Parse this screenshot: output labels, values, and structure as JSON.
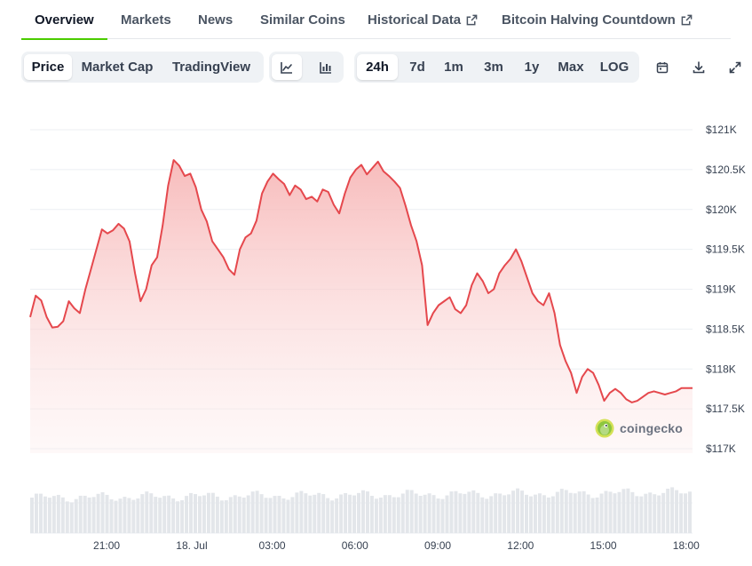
{
  "tabs": [
    {
      "label": "Overview",
      "active": true,
      "external": false
    },
    {
      "label": "Markets",
      "active": false,
      "external": false
    },
    {
      "label": "News",
      "active": false,
      "external": false
    },
    {
      "label": "Similar Coins",
      "active": false,
      "external": false
    },
    {
      "label": "Historical Data",
      "active": false,
      "external": true
    },
    {
      "label": "Bitcoin Halving Countdown",
      "active": false,
      "external": true
    }
  ],
  "toolbar": {
    "metric_tabs": [
      {
        "label": "Price",
        "active": true
      },
      {
        "label": "Market Cap",
        "active": false
      },
      {
        "label": "TradingView",
        "active": false
      }
    ],
    "chart_type_icons": [
      {
        "name": "line-chart-icon",
        "active": true
      },
      {
        "name": "candlestick-chart-icon",
        "active": false
      }
    ],
    "ranges": [
      {
        "label": "24h",
        "active": true
      },
      {
        "label": "7d",
        "active": false
      },
      {
        "label": "1m",
        "active": false
      },
      {
        "label": "3m",
        "active": false
      },
      {
        "label": "1y",
        "active": false
      },
      {
        "label": "Max",
        "active": false
      },
      {
        "label": "LOG",
        "active": false
      }
    ],
    "action_icons": [
      "calendar-icon",
      "download-icon",
      "expand-icon"
    ]
  },
  "watermark": {
    "text": "coingecko",
    "icon": "coingecko-gecko-icon"
  },
  "colors": {
    "line": "#e5484d",
    "fill_top": "#f7b8b8",
    "active_tab_underline": "#4bcc00",
    "volume_bar": "#e3e6ea",
    "gecko_green": "#8dc63f"
  },
  "chart_data": {
    "type": "area",
    "title": "",
    "xlabel": "",
    "ylabel": "",
    "ylim": [
      116750,
      121250
    ],
    "yticks": [
      {
        "value": 121000,
        "label": "$121K"
      },
      {
        "value": 120500,
        "label": "$120.5K"
      },
      {
        "value": 120000,
        "label": "$120K"
      },
      {
        "value": 119500,
        "label": "$119.5K"
      },
      {
        "value": 119000,
        "label": "$119K"
      },
      {
        "value": 118500,
        "label": "$118.5K"
      },
      {
        "value": 118000,
        "label": "$118K"
      },
      {
        "value": 117500,
        "label": "$117.5K"
      },
      {
        "value": 117000,
        "label": "$117K"
      }
    ],
    "xlim": [
      0,
      24
    ],
    "xticks": [
      {
        "value": 2.8,
        "label": "21:00"
      },
      {
        "value": 5.8,
        "label": "18. Jul"
      },
      {
        "value": 8.8,
        "label": "03:00"
      },
      {
        "value": 11.8,
        "label": "06:00"
      },
      {
        "value": 14.8,
        "label": "09:00"
      },
      {
        "value": 17.8,
        "label": "12:00"
      },
      {
        "value": 20.8,
        "label": "15:00"
      },
      {
        "value": 23.8,
        "label": "18:00"
      }
    ],
    "grid": true,
    "legend": "none",
    "series": [
      {
        "x": [
          0,
          0.2,
          0.4,
          0.6,
          0.8,
          1.0,
          1.2,
          1.4,
          1.6,
          1.8,
          2.0,
          2.2,
          2.4,
          2.6,
          2.8,
          3.0,
          3.2,
          3.4,
          3.6,
          3.8,
          4.0,
          4.2,
          4.4,
          4.6,
          4.8,
          5.0,
          5.2,
          5.4,
          5.6,
          5.8,
          6.0,
          6.2,
          6.4,
          6.6,
          6.8,
          7.0,
          7.2,
          7.4,
          7.6,
          7.8,
          8.0,
          8.2,
          8.4,
          8.6,
          8.8,
          9.0,
          9.2,
          9.4,
          9.6,
          9.8,
          10.0,
          10.2,
          10.4,
          10.6,
          10.8,
          11.0,
          11.2,
          11.4,
          11.6,
          11.8,
          12.0,
          12.2,
          12.4,
          12.6,
          12.8,
          13.0,
          13.2,
          13.4,
          13.6,
          13.8,
          14.0,
          14.2,
          14.4,
          14.6,
          14.8,
          15.0,
          15.2,
          15.4,
          15.6,
          15.8,
          16.0,
          16.2,
          16.4,
          16.6,
          16.8,
          17.0,
          17.2,
          17.4,
          17.6,
          17.8,
          18.0,
          18.2,
          18.4,
          18.6,
          18.8,
          19.0,
          19.2,
          19.4,
          19.6,
          19.8,
          20.0,
          20.2,
          20.4,
          20.6,
          20.8,
          21.0,
          21.2,
          21.4,
          21.6,
          21.8,
          22.0,
          22.2,
          22.4,
          22.6,
          22.8,
          23.0,
          23.2,
          23.4,
          23.6,
          23.8,
          24.0
        ],
        "y": [
          118650,
          118920,
          118860,
          118650,
          118520,
          118530,
          118600,
          118850,
          118760,
          118700,
          119000,
          119250,
          119500,
          119750,
          119700,
          119740,
          119820,
          119760,
          119600,
          119200,
          118850,
          119000,
          119300,
          119400,
          119800,
          120300,
          120620,
          120550,
          120420,
          120450,
          120280,
          120000,
          119850,
          119600,
          119500,
          119400,
          119250,
          119180,
          119500,
          119650,
          119700,
          119860,
          120200,
          120350,
          120450,
          120380,
          120320,
          120180,
          120300,
          120250,
          120130,
          120160,
          120100,
          120250,
          120220,
          120060,
          119950,
          120200,
          120400,
          120500,
          120560,
          120440,
          120520,
          120600,
          120480,
          120420,
          120350,
          120270,
          120050,
          119800,
          119600,
          119300,
          118550,
          118700,
          118800,
          118850,
          118900,
          118750,
          118700,
          118800,
          119050,
          119200,
          119100,
          118950,
          119000,
          119200,
          119300,
          119380,
          119500,
          119350,
          119150,
          118950,
          118850,
          118800,
          118950,
          118700,
          118300,
          118100,
          117950,
          117700,
          117900,
          118000,
          117950,
          117800,
          117600,
          117700,
          117750,
          117700,
          117620,
          117580,
          117600,
          117650,
          117700,
          117720,
          117700,
          117680,
          117700,
          117720,
          117760,
          117760,
          117760
        ]
      }
    ]
  }
}
